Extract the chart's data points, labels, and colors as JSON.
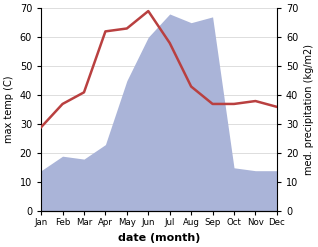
{
  "months": [
    "Jan",
    "Feb",
    "Mar",
    "Apr",
    "May",
    "Jun",
    "Jul",
    "Aug",
    "Sep",
    "Oct",
    "Nov",
    "Dec"
  ],
  "temperature": [
    29,
    37,
    41,
    62,
    63,
    69,
    58,
    43,
    37,
    37,
    38,
    36
  ],
  "precipitation": [
    14,
    19,
    18,
    23,
    45,
    60,
    68,
    65,
    67,
    15,
    14,
    14
  ],
  "temp_color": "#b94040",
  "precip_color": "#aab4d8",
  "ylabel_left": "max temp (C)",
  "ylabel_right": "med. precipitation (kg/m2)",
  "xlabel": "date (month)",
  "ylim": [
    0,
    70
  ],
  "yticks": [
    0,
    10,
    20,
    30,
    40,
    50,
    60,
    70
  ],
  "background_color": "#ffffff",
  "grid_color": "#d0d0d0"
}
